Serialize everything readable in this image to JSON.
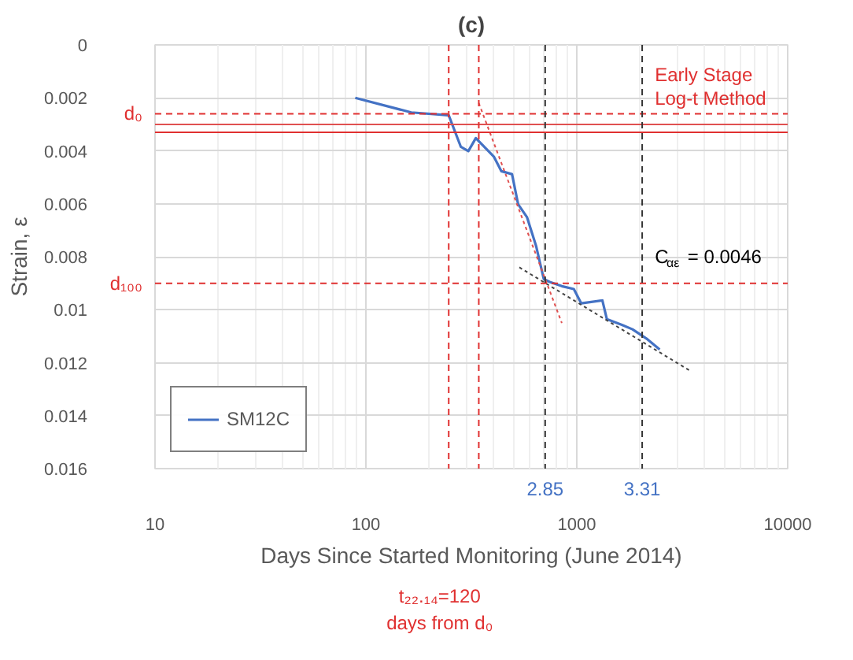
{
  "chart_data": {
    "type": "line",
    "title": "(c)",
    "xlabel": "Days Since Started Monitoring (June 2014)",
    "ylabel": "Strain, ε",
    "log": "x",
    "xlim": [
      10,
      10000
    ],
    "xticks": [
      10,
      100,
      1000,
      10000
    ],
    "ylim": [
      0.016,
      0
    ],
    "yticks": [
      0,
      0.002,
      0.004,
      0.006,
      0.008,
      0.01,
      0.012,
      0.014,
      0.016
    ],
    "grid": true,
    "legend": "bottom left",
    "line_style": "solid",
    "series": [
      {
        "name": "SM12C",
        "color": "#4472c4",
        "x": [
          89,
          164,
          247,
          282,
          306,
          332,
          405,
          439,
          493,
          527,
          581,
          641,
          697,
          744,
          849,
          968,
          1050,
          1322,
          1389,
          1637,
          1837,
          2166,
          2472
        ],
        "values": [
          0.002,
          0.00255,
          0.00266,
          0.00385,
          0.00401,
          0.00352,
          0.00423,
          0.00477,
          0.00488,
          0.00602,
          0.00651,
          0.00759,
          0.00884,
          0.00895,
          0.00911,
          0.00922,
          0.00976,
          0.00965,
          0.01036,
          0.01057,
          0.01074,
          0.01112,
          0.0115
        ]
      },
      {
        "color": "#e05050",
        "x": [
          343,
          849
        ],
        "values": [
          0.0022,
          0.0105
        ],
        "line_style": "dotted"
      },
      {
        "color": "#444444",
        "x": [
          534,
          3436
        ],
        "values": [
          0.0084,
          0.0123
        ],
        "line_style": "dotted"
      }
    ],
    "ref_lines": [
      {
        "axis": "y",
        "value": 0.0026,
        "label": "d₀",
        "color": "#e03030",
        "line_style": "dashed"
      },
      {
        "axis": "y",
        "value": 0.003,
        "color": "#e05050",
        "line_style": "solid"
      },
      {
        "axis": "y",
        "value": 0.0033,
        "color": "#e03030",
        "line_style": "solid"
      },
      {
        "axis": "y",
        "value": 0.009,
        "label": "d₁₀₀",
        "color": "#e03030",
        "line_style": "dashed"
      },
      {
        "axis": "x",
        "value": 247,
        "color": "#e03030",
        "line_style": "dashed"
      },
      {
        "axis": "x",
        "value": 343,
        "color": "#e03030",
        "line_style": "dashed"
      },
      {
        "axis": "x",
        "value": 708,
        "color": "#333333",
        "line_style": "dashed"
      },
      {
        "axis": "x",
        "value": 2042,
        "color": "#333333",
        "line_style": "dashed"
      }
    ],
    "annotations": [
      "Early Stage\nLog-t Method",
      "C$_{αε}$ = 0.0046",
      "t₂₂.₁₄=120\ndays from d₀",
      {
        "text": "2.85",
        "x": 708,
        "y": 0.016
      },
      {
        "text": "3.31",
        "x": 2042,
        "y": 0.016
      }
    ]
  }
}
